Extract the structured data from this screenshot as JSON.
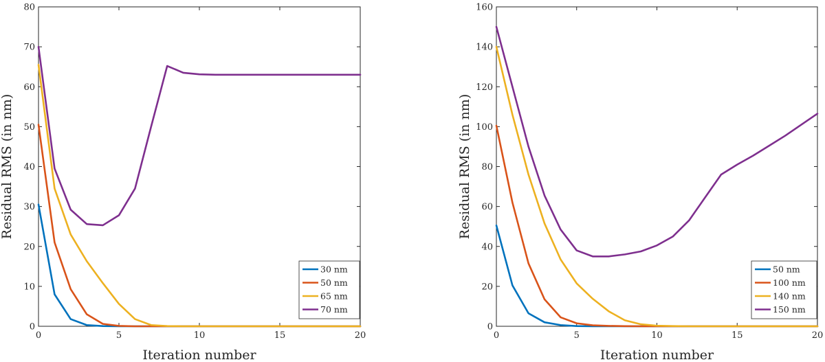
{
  "chart_data": [
    {
      "type": "line",
      "title": "",
      "xlabel": "Iteration number",
      "ylabel": "Residual RMS (in nm)",
      "xlim": [
        0,
        20
      ],
      "ylim": [
        0,
        80
      ],
      "xticks": [
        0,
        5,
        10,
        15,
        20
      ],
      "yticks": [
        0,
        10,
        20,
        30,
        40,
        50,
        60,
        70,
        80
      ],
      "grid": false,
      "legend_position": "bottom-right",
      "series": [
        {
          "name": "30 nm",
          "color": "#0072BD",
          "x": [
            0,
            1,
            2,
            3,
            4,
            5,
            6,
            7,
            8,
            9,
            10,
            11,
            12,
            13,
            14,
            15,
            16,
            17,
            18,
            19,
            20
          ],
          "y": [
            30.5,
            8,
            1.8,
            0.3,
            0.05,
            0,
            0,
            0,
            0,
            0,
            0,
            0,
            0,
            0,
            0,
            0,
            0,
            0,
            0,
            0,
            0
          ]
        },
        {
          "name": "50 nm",
          "color": "#D95319",
          "x": [
            0,
            1,
            2,
            3,
            4,
            5,
            6,
            7,
            8,
            9,
            10,
            11,
            12,
            13,
            14,
            15,
            16,
            17,
            18,
            19,
            20
          ],
          "y": [
            50.5,
            21,
            9.3,
            3,
            0.6,
            0.1,
            0,
            0,
            0,
            0,
            0,
            0,
            0,
            0,
            0,
            0,
            0,
            0,
            0,
            0,
            0
          ]
        },
        {
          "name": "65 nm",
          "color": "#EDB120",
          "x": [
            0,
            1,
            2,
            3,
            4,
            5,
            6,
            7,
            8,
            9,
            10,
            11,
            12,
            13,
            14,
            15,
            16,
            17,
            18,
            19,
            20
          ],
          "y": [
            65.5,
            34.5,
            23,
            16.3,
            10.8,
            5.6,
            1.8,
            0.3,
            0.05,
            0,
            0,
            0,
            0,
            0,
            0,
            0,
            0,
            0,
            0,
            0,
            0
          ]
        },
        {
          "name": "70 nm",
          "color": "#7E2F8E",
          "x": [
            0,
            1,
            2,
            3,
            4,
            5,
            6,
            7,
            8,
            9,
            10,
            11,
            12,
            13,
            20
          ],
          "y": [
            70,
            39.5,
            29.2,
            25.6,
            25.3,
            27.8,
            34.5,
            50,
            65.2,
            63.5,
            63.1,
            63,
            63,
            63,
            63
          ]
        }
      ]
    },
    {
      "type": "line",
      "title": "",
      "xlabel": "Iteration number",
      "ylabel": "Residual RMS (in nm)",
      "xlim": [
        0,
        20
      ],
      "ylim": [
        0,
        160
      ],
      "xticks": [
        0,
        5,
        10,
        15,
        20
      ],
      "yticks": [
        0,
        20,
        40,
        60,
        80,
        100,
        120,
        140,
        160
      ],
      "grid": false,
      "legend_position": "bottom-right",
      "series": [
        {
          "name": "50 nm",
          "color": "#0072BD",
          "x": [
            0,
            1,
            2,
            3,
            4,
            5,
            6,
            7,
            8,
            9,
            10,
            11,
            12,
            13,
            14,
            15,
            16,
            17,
            18,
            19,
            20
          ],
          "y": [
            50.5,
            20.5,
            6.5,
            2,
            0.6,
            0.1,
            0,
            0,
            0,
            0,
            0,
            0,
            0,
            0,
            0,
            0,
            0,
            0,
            0,
            0,
            0
          ]
        },
        {
          "name": "100 nm",
          "color": "#D95319",
          "x": [
            0,
            1,
            2,
            3,
            4,
            5,
            6,
            7,
            8,
            9,
            10,
            11,
            12,
            13,
            14,
            15,
            16,
            17,
            18,
            19,
            20
          ],
          "y": [
            100.5,
            62,
            31.5,
            13.5,
            4.5,
            1.5,
            0.5,
            0.2,
            0.05,
            0,
            0,
            0,
            0,
            0,
            0,
            0,
            0,
            0,
            0,
            0,
            0
          ]
        },
        {
          "name": "140 nm",
          "color": "#EDB120",
          "x": [
            0,
            1,
            2,
            3,
            4,
            5,
            6,
            7,
            8,
            9,
            10,
            11,
            12,
            13,
            14,
            15,
            16,
            17,
            18,
            19,
            20
          ],
          "y": [
            140,
            106,
            76,
            51.5,
            33.5,
            21.5,
            13.8,
            7.5,
            3,
            1,
            0.3,
            0.1,
            0,
            0,
            0,
            0,
            0,
            0,
            0,
            0,
            0
          ]
        },
        {
          "name": "150 nm",
          "color": "#7E2F8E",
          "x": [
            0,
            1,
            2,
            3,
            4,
            5,
            6,
            7,
            8,
            9,
            10,
            11,
            12,
            13,
            14,
            15,
            16,
            17,
            18,
            19,
            20
          ],
          "y": [
            150,
            120,
            90,
            65.5,
            48.5,
            38,
            35,
            35,
            36,
            37.5,
            40.5,
            45,
            53,
            64.5,
            76,
            81,
            85.5,
            90.5,
            95.5,
            101,
            106.5
          ]
        }
      ]
    }
  ]
}
